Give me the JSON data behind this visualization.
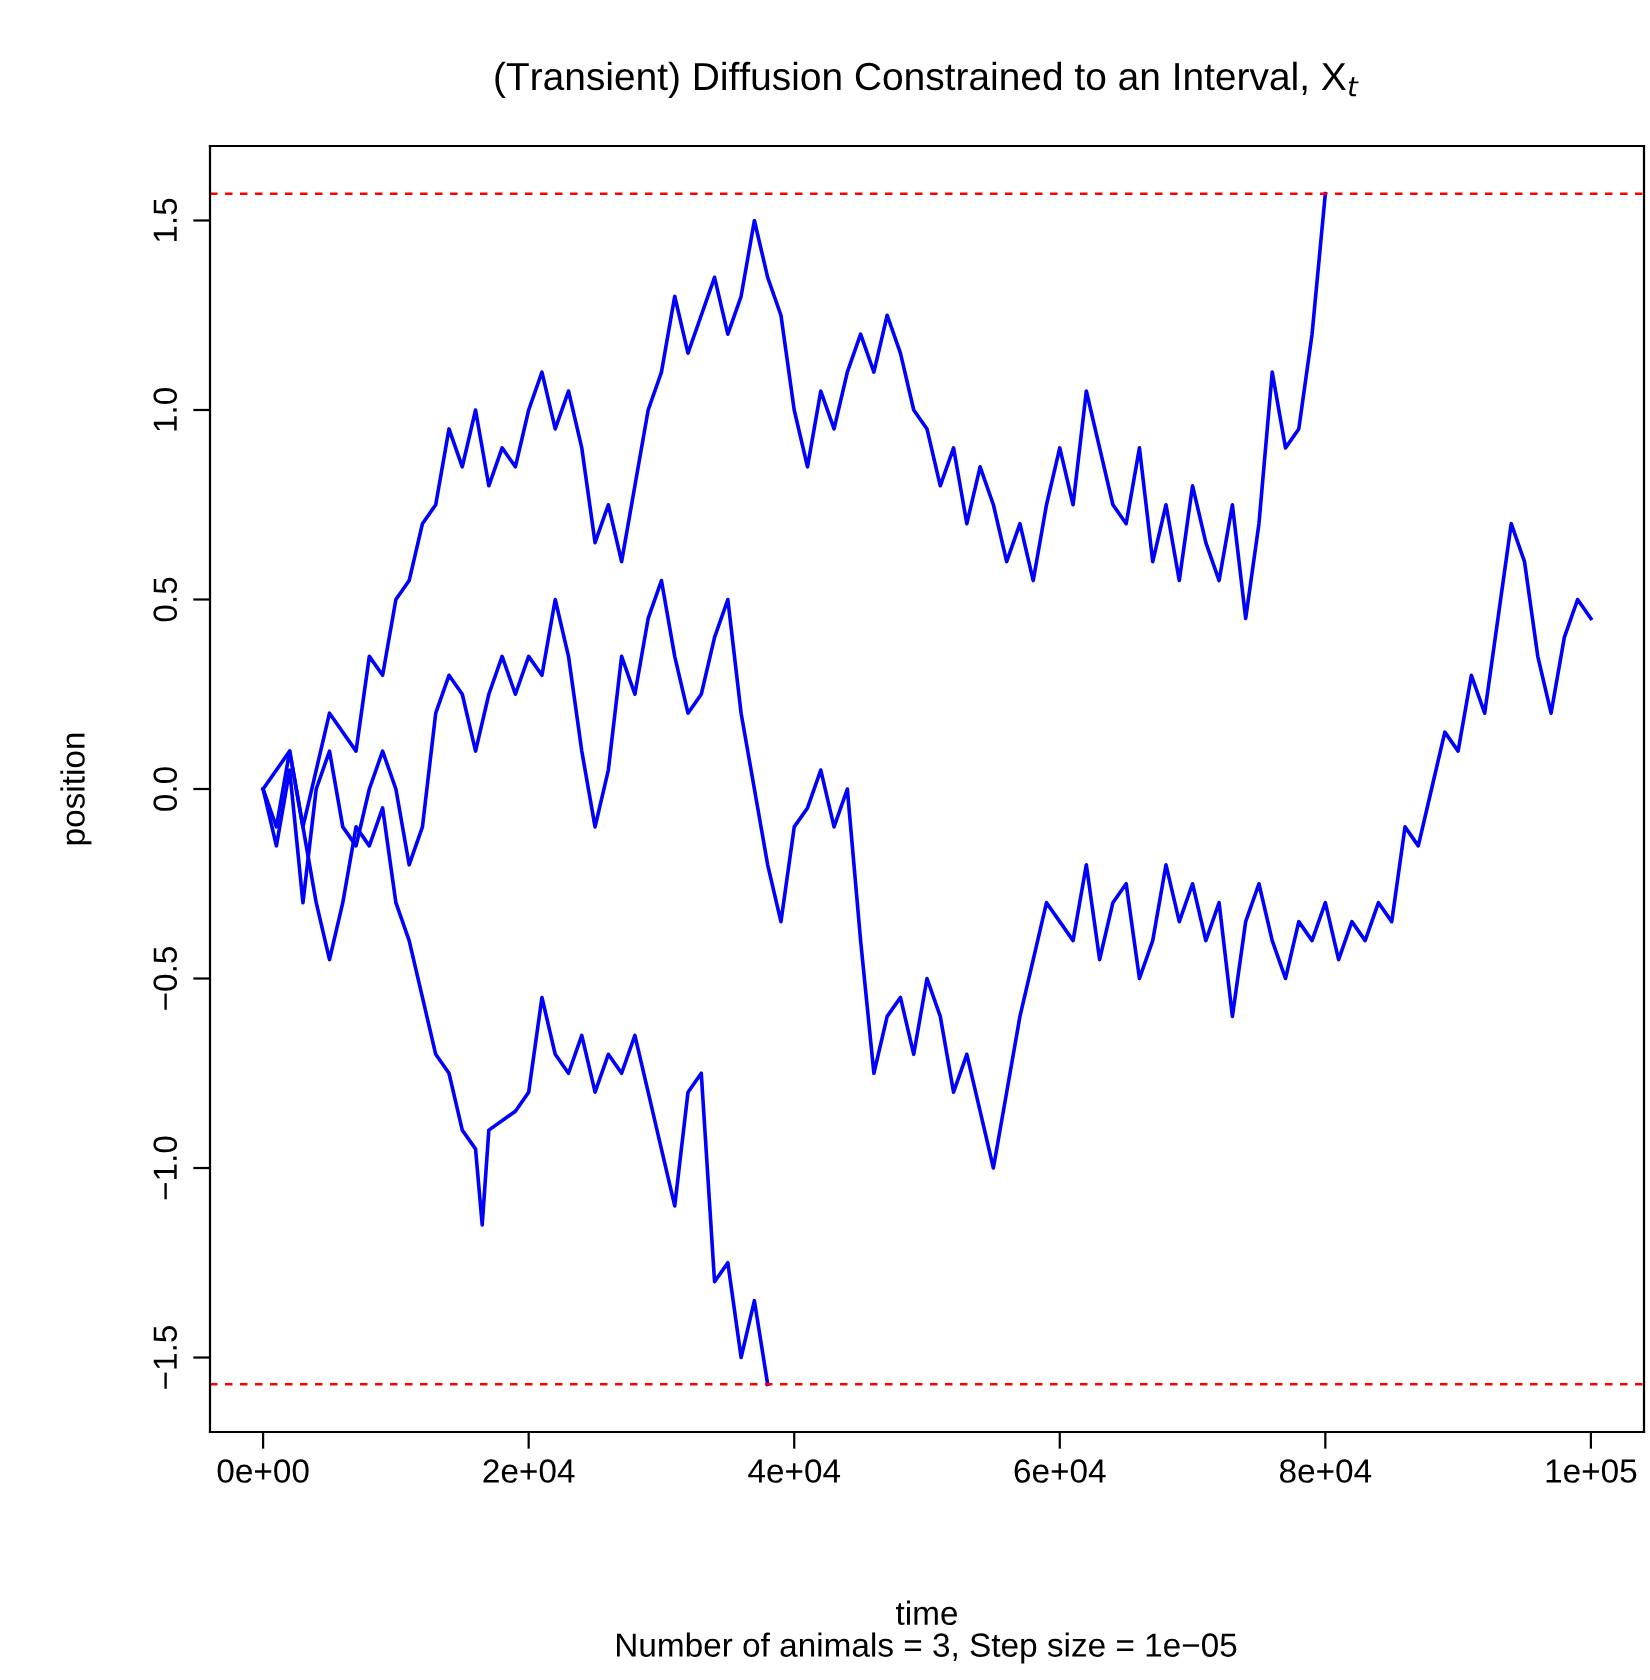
{
  "chart_data": {
    "type": "line",
    "title": "(Transient) Diffusion Constrained to an Interval, X$_{t}$",
    "subtitle": "Number of animals = 3, Step size = 1e−05",
    "xlabel": "time",
    "ylabel": "position",
    "xlim": [
      -4000,
      104000
    ],
    "ylim": [
      -1.6965,
      1.6965
    ],
    "xticks": [
      {
        "value": 0,
        "label": "0e+00"
      },
      {
        "value": 20000,
        "label": "2e+04"
      },
      {
        "value": 40000,
        "label": "4e+04"
      },
      {
        "value": 60000,
        "label": "6e+04"
      },
      {
        "value": 80000,
        "label": "8e+04"
      },
      {
        "value": 100000,
        "label": "1e+05"
      }
    ],
    "yticks": [
      {
        "value": -1.5,
        "label": "−1.5"
      },
      {
        "value": -1.0,
        "label": "−1.0"
      },
      {
        "value": -0.5,
        "label": "−0.5"
      },
      {
        "value": 0.0,
        "label": "0.0"
      },
      {
        "value": 0.5,
        "label": "0.5"
      },
      {
        "value": 1.0,
        "label": "1.0"
      },
      {
        "value": 1.5,
        "label": "1.5"
      }
    ],
    "ref_lines": [
      {
        "axis": "y",
        "value": 1.5708,
        "color": "#ff0000",
        "line_style": "dashed"
      },
      {
        "axis": "y",
        "value": -1.5708,
        "color": "#ff0000",
        "line_style": "dashed"
      }
    ],
    "series": [
      {
        "color": "#0000ff",
        "x": [
          0,
          2000,
          3000,
          5000,
          7000,
          8000,
          9000,
          10000,
          11000,
          12000,
          13000,
          14000,
          15000,
          16000,
          17000,
          18000,
          19000,
          20000,
          21000,
          22000,
          23000,
          24000,
          25000,
          26000,
          27000,
          28000,
          29000,
          30000,
          31000,
          32000,
          33000,
          34000,
          35000,
          36000,
          37000,
          38000,
          39000,
          40000,
          41000,
          42000,
          43000,
          44000,
          45000,
          46000,
          47000,
          48000,
          49000,
          50000,
          51000,
          52000,
          53000,
          54000,
          55000,
          56000,
          57000,
          58000,
          59000,
          60000,
          61000,
          62000,
          63000,
          64000,
          65000,
          66000,
          67000,
          68000,
          69000,
          70000,
          71000,
          72000,
          73000,
          74000,
          75000,
          76000,
          77000,
          78000,
          79000,
          80000
        ],
        "values": [
          0.0,
          0.1,
          -0.1,
          0.2,
          0.1,
          0.35,
          0.3,
          0.5,
          0.55,
          0.7,
          0.75,
          0.95,
          0.85,
          1.0,
          0.8,
          0.9,
          0.85,
          1.0,
          1.1,
          0.95,
          1.05,
          0.9,
          0.65,
          0.75,
          0.6,
          0.8,
          1.0,
          1.1,
          1.3,
          1.15,
          1.25,
          1.35,
          1.2,
          1.3,
          1.5,
          1.35,
          1.25,
          1.0,
          0.85,
          1.05,
          0.95,
          1.1,
          1.2,
          1.1,
          1.25,
          1.15,
          1.0,
          0.95,
          0.8,
          0.9,
          0.7,
          0.85,
          0.75,
          0.6,
          0.7,
          0.55,
          0.75,
          0.9,
          0.75,
          1.05,
          0.9,
          0.75,
          0.7,
          0.9,
          0.6,
          0.75,
          0.55,
          0.8,
          0.65,
          0.55,
          0.75,
          0.45,
          0.7,
          1.1,
          0.9,
          0.95,
          1.2,
          1.5708
        ]
      },
      {
        "color": "#0000ff",
        "x": [
          0,
          1000,
          2000,
          3000,
          4000,
          5000,
          6000,
          7000,
          8000,
          9000,
          10000,
          11000,
          12000,
          13000,
          14000,
          15000,
          16000,
          17000,
          18000,
          19000,
          20000,
          21000,
          22000,
          23000,
          24000,
          25000,
          26000,
          27000,
          28000,
          29000,
          30000,
          31000,
          32000,
          33000,
          34000,
          35000,
          36000,
          37000,
          38000,
          39000,
          40000,
          41000,
          42000,
          43000,
          44000,
          45000,
          46000,
          47000,
          48000,
          49000,
          50000,
          51000,
          52000,
          53000,
          54000,
          55000,
          56000,
          57000,
          58000,
          59000,
          60000,
          61000,
          62000,
          63000,
          64000,
          65000,
          66000,
          67000,
          68000,
          69000,
          70000,
          71000,
          72000,
          73000,
          74000,
          75000,
          76000,
          77000,
          78000,
          79000,
          80000,
          81000,
          82000,
          83000,
          84000,
          85000,
          86000,
          87000,
          88000,
          89000,
          90000,
          91000,
          92000,
          93000,
          94000,
          95000,
          96000,
          97000,
          98000,
          99000,
          100000
        ],
        "values": [
          0.0,
          -0.15,
          0.05,
          -0.3,
          0.0,
          0.1,
          -0.1,
          -0.15,
          0.0,
          0.1,
          0.0,
          -0.2,
          -0.1,
          0.2,
          0.3,
          0.25,
          0.1,
          0.25,
          0.35,
          0.25,
          0.35,
          0.3,
          0.5,
          0.35,
          0.1,
          -0.1,
          0.05,
          0.35,
          0.25,
          0.45,
          0.55,
          0.35,
          0.2,
          0.25,
          0.4,
          0.5,
          0.2,
          0.0,
          -0.2,
          -0.35,
          -0.1,
          -0.05,
          0.05,
          -0.1,
          0.0,
          -0.4,
          -0.75,
          -0.6,
          -0.55,
          -0.7,
          -0.5,
          -0.6,
          -0.8,
          -0.7,
          -0.85,
          -1.0,
          -0.8,
          -0.6,
          -0.45,
          -0.3,
          -0.35,
          -0.4,
          -0.2,
          -0.45,
          -0.3,
          -0.25,
          -0.5,
          -0.4,
          -0.2,
          -0.35,
          -0.25,
          -0.4,
          -0.3,
          -0.6,
          -0.35,
          -0.25,
          -0.4,
          -0.5,
          -0.35,
          -0.4,
          -0.3,
          -0.45,
          -0.35,
          -0.4,
          -0.3,
          -0.35,
          -0.1,
          -0.15,
          0.0,
          0.15,
          0.1,
          0.3,
          0.2,
          0.45,
          0.7,
          0.6,
          0.35,
          0.2,
          0.4,
          0.5,
          0.45
        ]
      },
      {
        "color": "#0000ff",
        "x": [
          0,
          1000,
          2000,
          3000,
          4000,
          5000,
          6000,
          7000,
          8000,
          9000,
          10000,
          11000,
          12000,
          13000,
          14000,
          15000,
          16000,
          16500,
          17000,
          19000,
          20000,
          21000,
          22000,
          23000,
          24000,
          25000,
          26000,
          27000,
          28000,
          29000,
          30000,
          31000,
          32000,
          33000,
          34000,
          35000,
          36000,
          37000,
          38000
        ],
        "values": [
          0.0,
          -0.1,
          0.1,
          -0.1,
          -0.3,
          -0.45,
          -0.3,
          -0.1,
          -0.15,
          -0.05,
          -0.3,
          -0.4,
          -0.55,
          -0.7,
          -0.75,
          -0.9,
          -0.95,
          -1.15,
          -0.9,
          -0.85,
          -0.8,
          -0.55,
          -0.7,
          -0.75,
          -0.65,
          -0.8,
          -0.7,
          -0.75,
          -0.65,
          -0.8,
          -0.95,
          -1.1,
          -0.8,
          -0.75,
          -1.3,
          -1.25,
          -1.5,
          -1.35,
          -1.5708
        ]
      }
    ]
  }
}
